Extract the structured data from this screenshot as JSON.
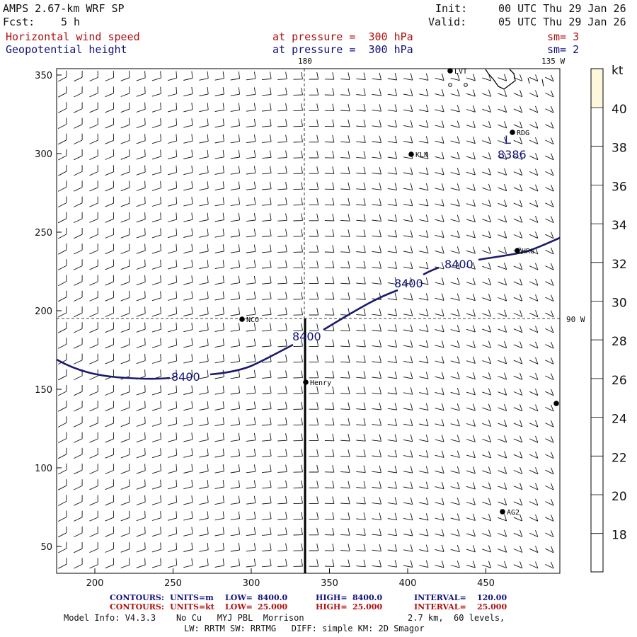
{
  "header": {
    "model_title": "AMPS 2.67-km WRF SP",
    "forecast_label": "Fcst:",
    "forecast_value": "5 h",
    "init_label": "Init:",
    "init_value": "00 UTC Thu 29 Jan 26",
    "valid_label": "Valid:",
    "valid_value": "05 UTC Thu 29 Jan 26",
    "field1_name": "Horizontal wind speed",
    "field1_level": "at pressure =  300 hPa",
    "field1_smooth": "sm= 3",
    "field2_name": "Geopotential height",
    "field2_level": "at pressure =  300 hPa",
    "field2_smooth": "sm= 2"
  },
  "map": {
    "longitude_labels": [
      "180",
      "135 W",
      "90 W"
    ],
    "x_ticks": [
      "200",
      "250",
      "300",
      "350",
      "400",
      "450"
    ],
    "y_ticks": [
      "350",
      "300",
      "250",
      "200",
      "150",
      "100",
      "50"
    ],
    "stations": [
      {
        "name": "LVT"
      },
      {
        "name": "RDG"
      },
      {
        "name": "KLN"
      },
      {
        "name": "HRG"
      },
      {
        "name": "NCO"
      },
      {
        "name": "Henry"
      },
      {
        "name": "AG2"
      },
      {
        "name": ""
      }
    ],
    "contour_labels": [
      "8400",
      "8400",
      "8400",
      "8400"
    ],
    "low_marker": "L",
    "low_value": "8386",
    "contour_color": "#1a1a6e",
    "barb_color": "#111111"
  },
  "colorbar": {
    "unit": "kt",
    "ticks": [
      "40",
      "38",
      "36",
      "34",
      "32",
      "30",
      "28",
      "26",
      "24",
      "22",
      "20",
      "18"
    ],
    "top_color": "#fdf8dc",
    "fill_color": "#ffffff"
  },
  "footer": {
    "row1_label": "CONTOURS:",
    "row1_units": "UNITS=m",
    "row1_low_label": "LOW=",
    "row1_low": "8400.0",
    "row1_high_label": "HIGH=",
    "row1_high": "8400.0",
    "row1_interval_label": "INTERVAL=",
    "row1_interval": "120.00",
    "row2_label": "CONTOURS:",
    "row2_units": "UNITS=kt",
    "row2_low_label": "LOW=",
    "row2_low": "25.000",
    "row2_high_label": "HIGH=",
    "row2_high": "25.000",
    "row2_interval_label": "INTERVAL=",
    "row2_interval": "25.000",
    "model_info": "Model Info: V4.3.3    No Cu   MYJ PBL  Morrison",
    "model_res": "2.7 km,  60 levels,",
    "model_phys": "LW: RRTM SW: RRTMG   DIFF: simple KM: 2D Smagor"
  }
}
